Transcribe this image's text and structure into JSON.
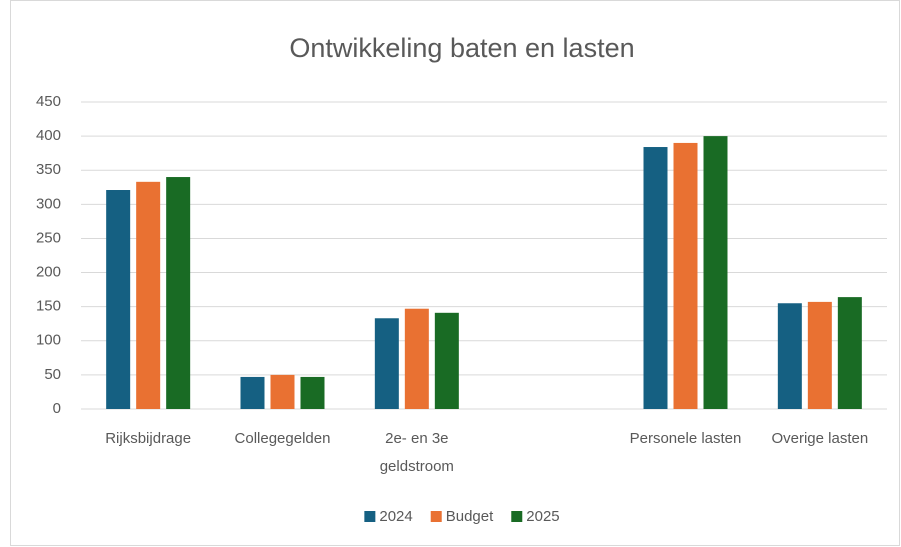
{
  "chart_data": {
    "type": "bar",
    "title": "Ontwikkeling baten en lasten",
    "categories": [
      "Rijksbijdrage",
      "Collegegelden",
      "2e- en 3e geldstroom",
      null,
      "Personele lasten",
      "Overige lasten"
    ],
    "series": [
      {
        "name": "2024",
        "color": "#156082",
        "values": [
          321,
          47,
          133,
          null,
          384,
          155
        ]
      },
      {
        "name": "Budget",
        "color": "#e97132",
        "values": [
          333,
          50,
          147,
          null,
          390,
          157
        ]
      },
      {
        "name": "2025",
        "color": "#196b24",
        "values": [
          340,
          47,
          141,
          null,
          400,
          164
        ]
      }
    ],
    "ylim": [
      0,
      450
    ],
    "yticks": [
      0,
      50,
      100,
      150,
      200,
      250,
      300,
      350,
      400,
      450
    ],
    "grid": true,
    "legend": "bottom"
  }
}
